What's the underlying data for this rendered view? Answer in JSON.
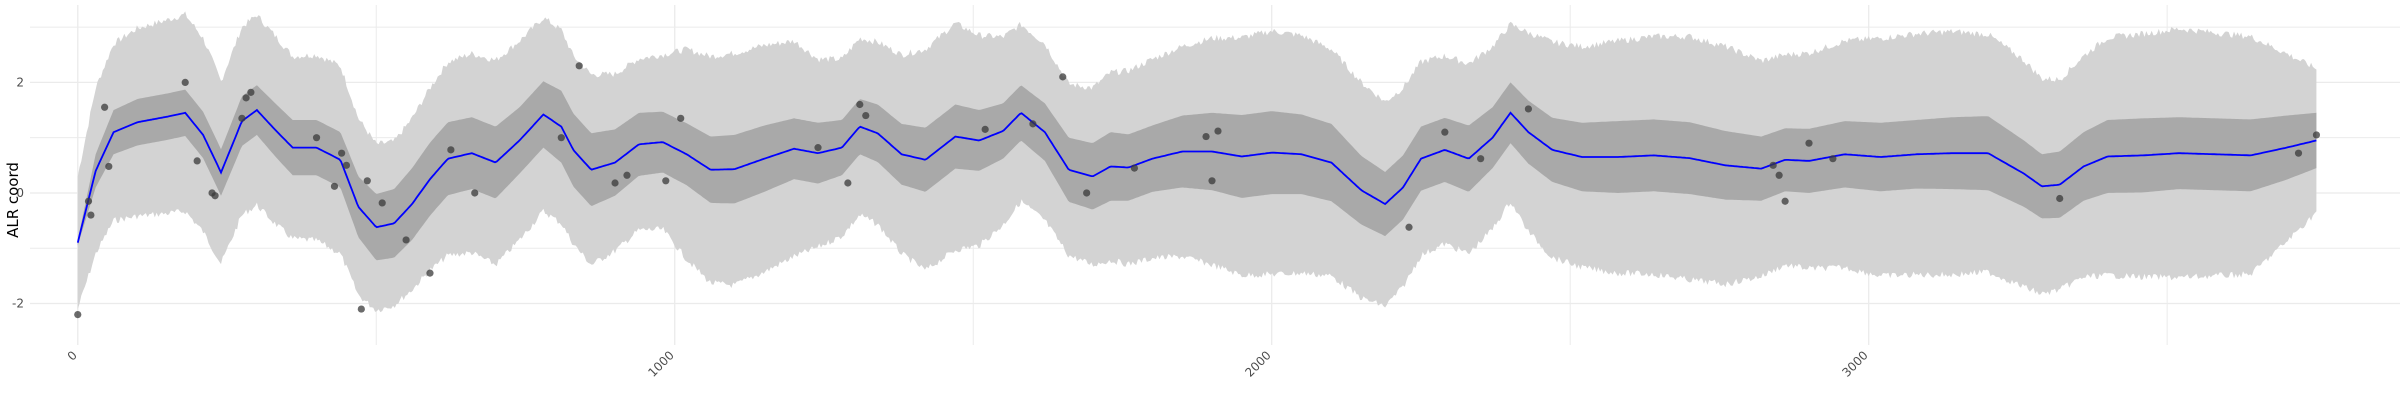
{
  "chart_data": {
    "type": "line",
    "title": "",
    "xlabel": "",
    "ylabel": "ALR coord",
    "xlim": [
      -80,
      3890
    ],
    "ylim": [
      -2.75,
      3.4
    ],
    "x_ticks": [
      0,
      1000,
      2000,
      3000
    ],
    "x_tick_labels": [
      "0",
      "1000",
      "2000",
      "3000"
    ],
    "y_ticks": [
      -2,
      0,
      2
    ],
    "y_tick_labels": [
      "-2",
      "0",
      "2"
    ],
    "grid": true,
    "legend": "none",
    "colors": {
      "mean_line": "#0000ff",
      "inner_band": "#a9a9a9",
      "outer_band": "#d3d3d3",
      "points": "#3a3a3a",
      "grid": "#ebebeb"
    },
    "mean_curve": {
      "x": [
        0,
        30,
        60,
        100,
        150,
        180,
        210,
        240,
        275,
        300,
        330,
        360,
        400,
        440,
        470,
        500,
        530,
        560,
        590,
        620,
        660,
        700,
        740,
        780,
        810,
        830,
        860,
        900,
        940,
        980,
        1020,
        1060,
        1100,
        1150,
        1200,
        1240,
        1280,
        1310,
        1340,
        1380,
        1420,
        1470,
        1510,
        1550,
        1580,
        1620,
        1660,
        1700,
        1730,
        1760,
        1800,
        1850,
        1900,
        1950,
        2000,
        2050,
        2100,
        2150,
        2190,
        2220,
        2250,
        2290,
        2330,
        2370,
        2400,
        2430,
        2470,
        2520,
        2580,
        2640,
        2700,
        2760,
        2820,
        2860,
        2900,
        2960,
        3020,
        3080,
        3140,
        3200,
        3260,
        3290,
        3320,
        3360,
        3400,
        3460,
        3520,
        3580,
        3640,
        3700,
        3750
      ],
      "y": [
        -0.9,
        0.4,
        1.1,
        1.28,
        1.38,
        1.45,
        1.05,
        0.37,
        1.3,
        1.5,
        1.15,
        0.82,
        0.82,
        0.6,
        -0.25,
        -0.62,
        -0.55,
        -0.2,
        0.25,
        0.62,
        0.72,
        0.55,
        0.95,
        1.42,
        1.2,
        0.78,
        0.42,
        0.55,
        0.88,
        0.92,
        0.7,
        0.42,
        0.43,
        0.62,
        0.8,
        0.72,
        0.82,
        1.2,
        1.08,
        0.7,
        0.6,
        1.02,
        0.95,
        1.12,
        1.45,
        1.1,
        0.42,
        0.3,
        0.48,
        0.46,
        0.62,
        0.75,
        0.75,
        0.66,
        0.73,
        0.7,
        0.55,
        0.05,
        -0.2,
        0.1,
        0.62,
        0.78,
        0.62,
        1.0,
        1.45,
        1.1,
        0.78,
        0.65,
        0.65,
        0.68,
        0.63,
        0.5,
        0.44,
        0.6,
        0.58,
        0.7,
        0.65,
        0.7,
        0.72,
        0.72,
        0.35,
        0.12,
        0.15,
        0.48,
        0.66,
        0.68,
        0.72,
        0.7,
        0.68,
        0.82,
        0.95
      ]
    },
    "inner_band_halfwidth": [
      0.05,
      0.3,
      0.4,
      0.42,
      0.42,
      0.42,
      0.42,
      0.42,
      0.45,
      0.45,
      0.48,
      0.5,
      0.5,
      0.5,
      0.55,
      0.6,
      0.62,
      0.65,
      0.66,
      0.66,
      0.65,
      0.65,
      0.6,
      0.6,
      0.65,
      0.66,
      0.66,
      0.6,
      0.57,
      0.55,
      0.56,
      0.6,
      0.62,
      0.6,
      0.55,
      0.55,
      0.5,
      0.5,
      0.52,
      0.55,
      0.58,
      0.58,
      0.55,
      0.5,
      0.5,
      0.52,
      0.58,
      0.6,
      0.62,
      0.6,
      0.6,
      0.65,
      0.7,
      0.75,
      0.75,
      0.72,
      0.7,
      0.62,
      0.58,
      0.58,
      0.58,
      0.58,
      0.6,
      0.55,
      0.55,
      0.57,
      0.58,
      0.62,
      0.65,
      0.65,
      0.65,
      0.62,
      0.58,
      0.57,
      0.58,
      0.6,
      0.62,
      0.62,
      0.65,
      0.67,
      0.6,
      0.58,
      0.6,
      0.62,
      0.66,
      0.67,
      0.65,
      0.65,
      0.65,
      0.58,
      0.5
    ],
    "outer_band_halfwidth": [
      1.2,
      1.5,
      1.6,
      1.7,
      1.75,
      1.78,
      1.75,
      1.65,
      1.7,
      1.72,
      1.7,
      1.65,
      1.68,
      1.7,
      1.6,
      1.5,
      1.48,
      1.55,
      1.65,
      1.75,
      1.8,
      1.85,
      1.8,
      1.75,
      1.75,
      1.7,
      1.72,
      1.6,
      1.55,
      1.58,
      1.9,
      2.05,
      2.1,
      2.05,
      1.95,
      1.7,
      1.6,
      1.6,
      1.65,
      1.8,
      2.0,
      2.05,
      1.9,
      1.7,
      1.6,
      1.6,
      1.55,
      1.6,
      1.7,
      1.75,
      1.8,
      1.9,
      2.05,
      2.15,
      2.2,
      2.15,
      2.05,
      1.95,
      1.85,
      1.8,
      1.75,
      1.7,
      1.72,
      1.65,
      1.6,
      1.8,
      1.95,
      2.0,
      2.1,
      2.15,
      2.2,
      2.15,
      1.95,
      1.9,
      1.95,
      2.05,
      2.15,
      2.18,
      2.2,
      2.15,
      2.05,
      1.95,
      1.9,
      2.0,
      2.15,
      2.2,
      2.25,
      2.2,
      2.15,
      1.7,
      1.3
    ],
    "points": {
      "x": [
        0,
        18,
        22,
        45,
        52,
        180,
        200,
        225,
        230,
        275,
        282,
        290,
        400,
        430,
        442,
        450,
        475,
        485,
        510,
        550,
        590,
        625,
        665,
        810,
        840,
        900,
        920,
        985,
        1010,
        1240,
        1290,
        1310,
        1320,
        1520,
        1600,
        1650,
        1690,
        1770,
        1890,
        1900,
        1910,
        2230,
        2290,
        2350,
        2430,
        2840,
        2850,
        2860,
        2900,
        2940,
        3320,
        3720,
        3750
      ],
      "y": [
        -2.2,
        -0.15,
        -0.4,
        1.55,
        0.48,
        2.0,
        0.58,
        0.0,
        -0.05,
        1.35,
        1.72,
        1.82,
        1.0,
        0.12,
        0.72,
        0.5,
        -2.1,
        0.22,
        -0.18,
        -0.85,
        -1.45,
        0.78,
        0.0,
        1.0,
        2.3,
        0.18,
        0.32,
        0.22,
        1.35,
        0.82,
        0.18,
        1.6,
        1.4,
        1.15,
        1.25,
        2.1,
        0.0,
        0.45,
        1.02,
        0.22,
        1.12,
        -0.62,
        1.1,
        0.62,
        1.52,
        0.5,
        0.32,
        -0.15,
        0.9,
        0.62,
        -0.1,
        0.72,
        1.05
      ]
    }
  }
}
